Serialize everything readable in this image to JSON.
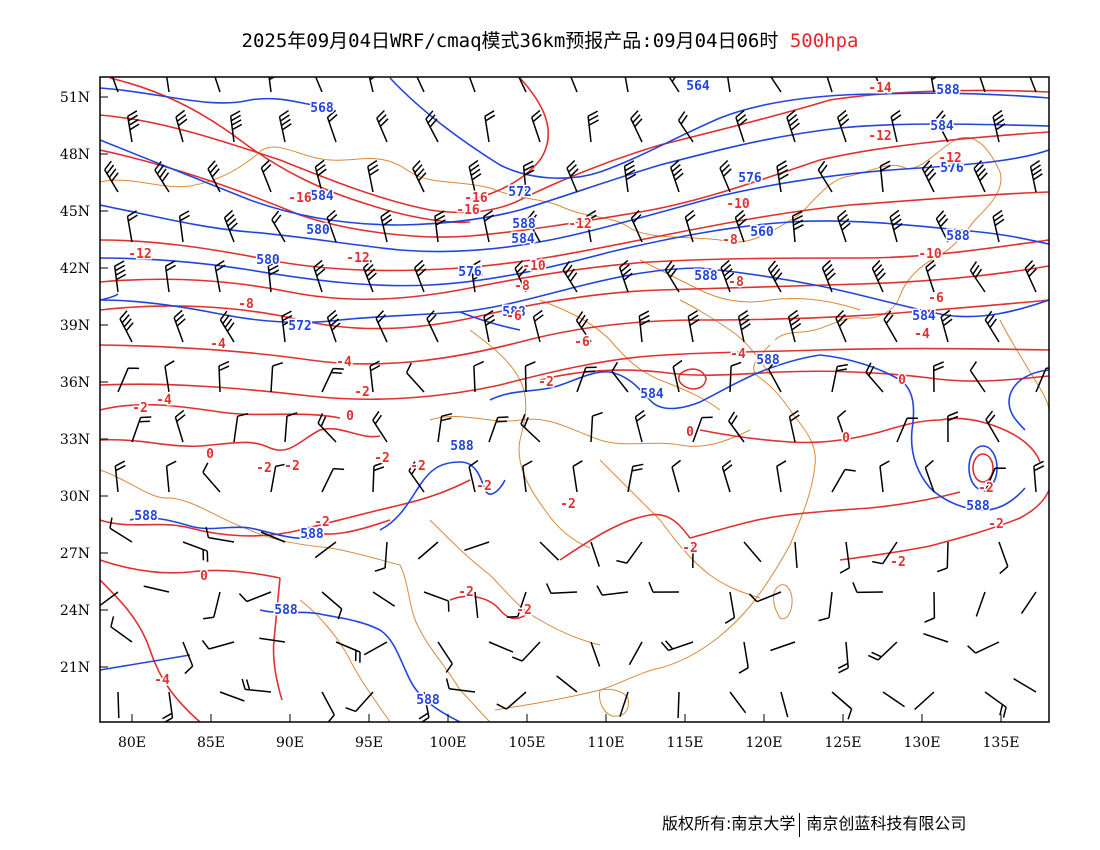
{
  "title": {
    "main": "2025年09月04日WRF/cmaq模式36km预报产品:09月04日06时",
    "level": "500hpa",
    "level_color": "#e8262a"
  },
  "footer": {
    "copyright": "版权所有:南京大学",
    "company": "南京创蓝科技有限公司"
  },
  "map": {
    "lat_labels": [
      "51N",
      "48N",
      "45N",
      "42N",
      "39N",
      "36N",
      "33N",
      "30N",
      "27N",
      "24N",
      "21N"
    ],
    "lon_labels": [
      "80E",
      "85E",
      "90E",
      "95E",
      "100E",
      "105E",
      "110E",
      "115E",
      "120E",
      "125E",
      "130E",
      "135E"
    ],
    "colors": {
      "height_contour": "#2244dd",
      "temperature_contour": "#e03030",
      "boundary": "#d98a3c",
      "wind_barb": "#000000"
    },
    "contour_labels": {
      "height": [
        "568",
        "564",
        "588",
        "572",
        "584",
        "576",
        "580",
        "584",
        "560",
        "580",
        "576",
        "588",
        "572",
        "588",
        "584",
        "588",
        "584",
        "584",
        "588",
        "588",
        "588",
        "588",
        "588",
        "588",
        "584",
        "588",
        "588",
        "576"
      ],
      "temperature": [
        "-14",
        "-12",
        "-12",
        "-16",
        "-16",
        "-16",
        "-12",
        "-10",
        "-8",
        "-12",
        "-12",
        "-10",
        "-8",
        "-8",
        "-6",
        "-10",
        "-8",
        "-6",
        "-4",
        "-4",
        "-6",
        "-4",
        "-2",
        "-2",
        "-4",
        "-2",
        "0",
        "0",
        "0",
        "0",
        "0",
        "-2",
        "-2",
        "-2",
        "-2",
        "-2",
        "-2",
        "-2",
        "-2",
        "-2",
        "0",
        "-2",
        "-2",
        "-10",
        "-4",
        "-2",
        "-2",
        "-4"
      ]
    }
  }
}
